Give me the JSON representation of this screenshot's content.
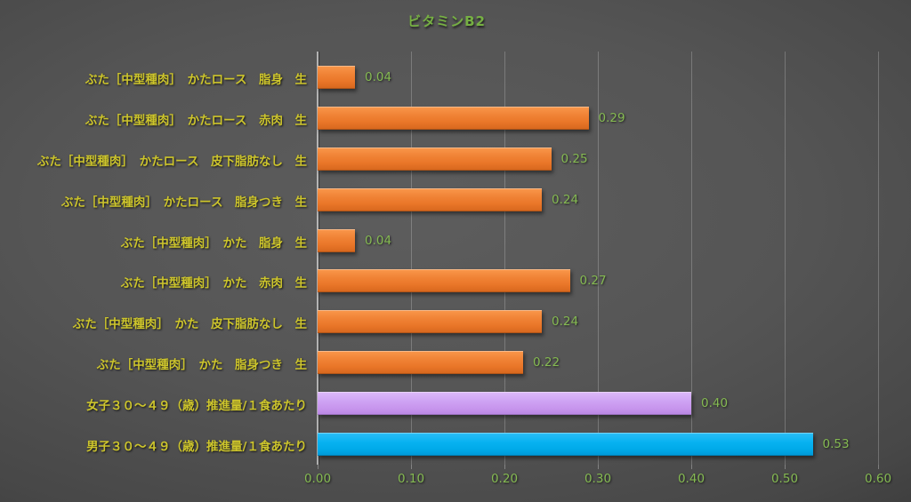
{
  "chart_data": {
    "type": "bar",
    "orientation": "horizontal",
    "title": "ビタミンB2",
    "categories": [
      "ぶた［中型種肉］　かたロース　脂身　生",
      "ぶた［中型種肉］　かたロース　赤肉　生",
      "ぶた［中型種肉］　かたロース　皮下脂肪なし　生",
      "ぶた［中型種肉］　かたロース　脂身つき　生",
      "ぶた［中型種肉］　かた　脂身　生",
      "ぶた［中型種肉］　かた　赤肉　生",
      "ぶた［中型種肉］　かた　皮下脂肪なし　生",
      "ぶた［中型種肉］　かた　脂身つき　生",
      "女子３０～４９（歳）推進量/１食あたり",
      "男子３０～４９（歳）推進量/１食あたり"
    ],
    "values": [
      0.04,
      0.29,
      0.25,
      0.24,
      0.04,
      0.27,
      0.24,
      0.22,
      0.4,
      0.53
    ],
    "value_labels": [
      "0.04",
      "0.29",
      "0.25",
      "0.24",
      "0.04",
      "0.27",
      "0.24",
      "0.22",
      "0.40",
      "0.53"
    ],
    "bar_colors": [
      "orange",
      "orange",
      "orange",
      "orange",
      "orange",
      "orange",
      "orange",
      "orange",
      "purple",
      "blue"
    ],
    "x_ticks": [
      "0.00",
      "0.10",
      "0.20",
      "0.30",
      "0.40",
      "0.50",
      "0.60"
    ],
    "xlim": [
      0,
      0.6
    ],
    "grid": true,
    "legend": "none"
  },
  "colors": {
    "background_center": "#5d5d5d",
    "background_edge": "#242424",
    "title": "#76b043",
    "category_label": "#cdc52c",
    "value_label": "#85ba52",
    "tick_label": "#85ba52",
    "axis_line": "#bdbdbd",
    "gridline": "#7e7e7e",
    "bar_orange": "#ed7d31",
    "bar_purple": "#cc9cf2",
    "bar_blue": "#00b0f0"
  }
}
